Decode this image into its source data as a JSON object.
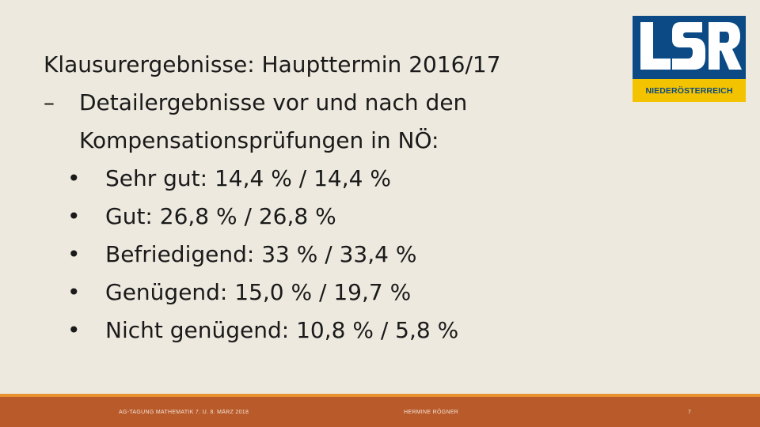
{
  "slide": {
    "title": "Klausurergebnisse: Haupttermin 2016/17",
    "dash": "–",
    "sub_line1": "Detailergebnisse vor und nach den",
    "sub_line2": "Kompensationsprüfungen in NÖ:",
    "bullet_glyph": "•",
    "bullets": [
      "Sehr gut: 14,4 % / 14,4 %",
      "Gut: 26,8 % / 26,8 %",
      "Befriedigend: 33 % / 33,4 %",
      "Genügend: 15,0 % / 19,7 %",
      "Nicht genügend: 10,8 % / 5,8 %"
    ]
  },
  "logo": {
    "letters": "LSR",
    "subtitle": "NIEDERÖSTERREICH",
    "colors": {
      "blue": "#0b4a84",
      "yellow": "#f3c300"
    }
  },
  "footer": {
    "left": "AG-TAGUNG MATHEMATIK 7. U. 8. MÄRZ 2018",
    "center": "HERMINE RÖGNER",
    "page_number": "7",
    "colors": {
      "bar": "#b85a2a",
      "accent_line": "#e8922f"
    }
  }
}
